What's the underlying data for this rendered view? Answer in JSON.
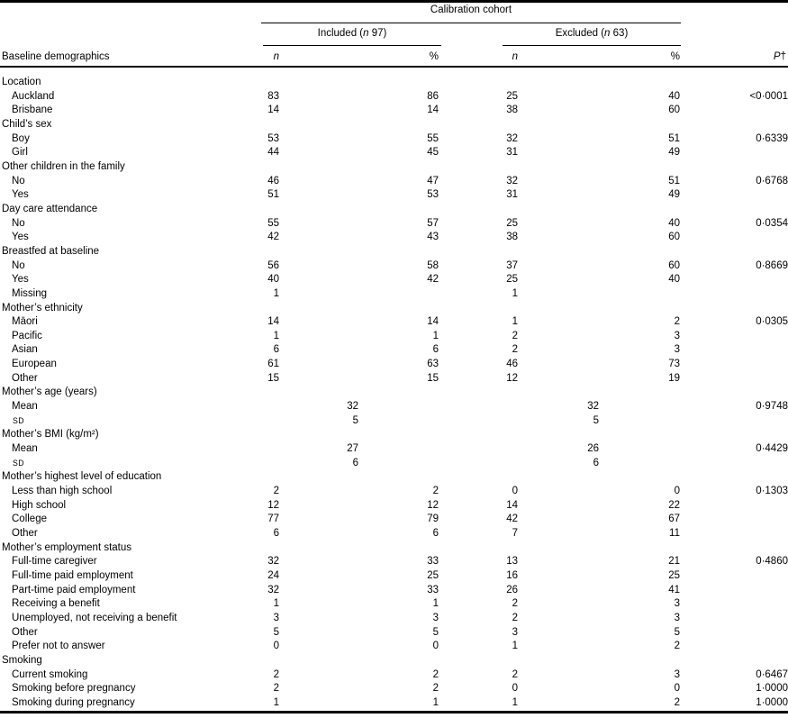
{
  "table": {
    "spanner": "Calibration cohort",
    "included": {
      "prefix": "Included (",
      "n_italic": "n",
      "suffix": " 97)"
    },
    "excluded": {
      "prefix": "Excluded (",
      "n_italic": "n",
      "suffix": " 63)"
    },
    "columns": {
      "label": "Baseline demographics",
      "n_italic": "n",
      "pct": "%",
      "p_italic": "P",
      "p_dagger": "†"
    },
    "rows": [
      {
        "label": "Location",
        "type": "group"
      },
      {
        "label": "Auckland",
        "type": "item",
        "n1": "83",
        "pct1": "86",
        "n2": "25",
        "pct2": "40",
        "p": "<0·0001"
      },
      {
        "label": "Brisbane",
        "type": "item",
        "n1": "14",
        "pct1": "14",
        "n2": "38",
        "pct2": "60"
      },
      {
        "label": "Child’s sex",
        "type": "group"
      },
      {
        "label": "Boy",
        "type": "item",
        "n1": "53",
        "pct1": "55",
        "n2": "32",
        "pct2": "51",
        "p": "0·6339"
      },
      {
        "label": "Girl",
        "type": "item",
        "n1": "44",
        "pct1": "45",
        "n2": "31",
        "pct2": "49"
      },
      {
        "label": "Other children in the family",
        "type": "group"
      },
      {
        "label": "No",
        "type": "item",
        "n1": "46",
        "pct1": "47",
        "n2": "32",
        "pct2": "51",
        "p": "0·6768"
      },
      {
        "label": "Yes",
        "type": "item",
        "n1": "51",
        "pct1": "53",
        "n2": "31",
        "pct2": "49"
      },
      {
        "label": "Day care attendance",
        "type": "group"
      },
      {
        "label": "No",
        "type": "item",
        "n1": "55",
        "pct1": "57",
        "n2": "25",
        "pct2": "40",
        "p": "0·0354"
      },
      {
        "label": "Yes",
        "type": "item",
        "n1": "42",
        "pct1": "43",
        "n2": "38",
        "pct2": "60"
      },
      {
        "label": "Breastfed at baseline",
        "type": "group"
      },
      {
        "label": "No",
        "type": "item",
        "n1": "56",
        "pct1": "58",
        "n2": "37",
        "pct2": "60",
        "p": "0·8669"
      },
      {
        "label": "Yes",
        "type": "item",
        "n1": "40",
        "pct1": "42",
        "n2": "25",
        "pct2": "40"
      },
      {
        "label": "Missing",
        "type": "item",
        "n1": "1",
        "n2": "1"
      },
      {
        "label": "Mother’s ethnicity",
        "type": "group"
      },
      {
        "label": "Māori",
        "type": "item",
        "n1": "14",
        "pct1": "14",
        "n2": "1",
        "pct2": "2",
        "p": "0·0305"
      },
      {
        "label": "Pacific",
        "type": "item",
        "n1": "1",
        "pct1": "1",
        "n2": "2",
        "pct2": "3"
      },
      {
        "label": "Asian",
        "type": "item",
        "n1": "6",
        "pct1": "6",
        "n2": "2",
        "pct2": "3"
      },
      {
        "label": "European",
        "type": "item",
        "n1": "61",
        "pct1": "63",
        "n2": "46",
        "pct2": "73"
      },
      {
        "label": "Other",
        "type": "item",
        "n1": "15",
        "pct1": "15",
        "n2": "12",
        "pct2": "19"
      },
      {
        "label": "Mother’s age (years)",
        "type": "group"
      },
      {
        "label": "Mean",
        "type": "item",
        "m1": "32",
        "m2": "32",
        "p": "0·9748"
      },
      {
        "label": "SD",
        "type": "sd",
        "m1": "5",
        "m2": "5"
      },
      {
        "label": "Mother’s BMI (kg/m²)",
        "type": "group"
      },
      {
        "label": "Mean",
        "type": "item",
        "m1": "27",
        "m2": "26",
        "p": "0·4429"
      },
      {
        "label": "SD",
        "type": "sd",
        "m1": "6",
        "m2": "6"
      },
      {
        "label": "Mother’s highest level of education",
        "type": "group"
      },
      {
        "label": "Less than high school",
        "type": "item",
        "n1": "2",
        "pct1": "2",
        "n2": "0",
        "pct2": "0",
        "p": "0·1303"
      },
      {
        "label": "High school",
        "type": "item",
        "n1": "12",
        "pct1": "12",
        "n2": "14",
        "pct2": "22"
      },
      {
        "label": "College",
        "type": "item",
        "n1": "77",
        "pct1": "79",
        "n2": "42",
        "pct2": "67"
      },
      {
        "label": "Other",
        "type": "item",
        "n1": "6",
        "pct1": "6",
        "n2": "7",
        "pct2": "11"
      },
      {
        "label": "Mother’s employment status",
        "type": "group"
      },
      {
        "label": "Full-time caregiver",
        "type": "item",
        "n1": "32",
        "pct1": "33",
        "n2": "13",
        "pct2": "21",
        "p": "0·4860"
      },
      {
        "label": "Full-time paid employment",
        "type": "item",
        "n1": "24",
        "pct1": "25",
        "n2": "16",
        "pct2": "25"
      },
      {
        "label": "Part-time paid employment",
        "type": "item",
        "n1": "32",
        "pct1": "33",
        "n2": "26",
        "pct2": "41"
      },
      {
        "label": "Receiving a benefit",
        "type": "item",
        "n1": "1",
        "pct1": "1",
        "n2": "2",
        "pct2": "3"
      },
      {
        "label": "Unemployed, not receiving a benefit",
        "type": "item",
        "n1": "3",
        "pct1": "3",
        "n2": "2",
        "pct2": "3"
      },
      {
        "label": "Other",
        "type": "item",
        "n1": "5",
        "pct1": "5",
        "n2": "3",
        "pct2": "5"
      },
      {
        "label": "Prefer not to answer",
        "type": "item",
        "n1": "0",
        "pct1": "0",
        "n2": "1",
        "pct2": "2"
      },
      {
        "label": "Smoking",
        "type": "group"
      },
      {
        "label": "Current smoking",
        "type": "item",
        "n1": "2",
        "pct1": "2",
        "n2": "2",
        "pct2": "3",
        "p": "0·6467"
      },
      {
        "label": "Smoking before pregnancy",
        "type": "item",
        "n1": "2",
        "pct1": "2",
        "n2": "0",
        "pct2": "0",
        "p": "1·0000"
      },
      {
        "label": "Smoking during pregnancy",
        "type": "item",
        "n1": "1",
        "pct1": "1",
        "n2": "1",
        "pct2": "2",
        "p": "1·0000"
      }
    ]
  }
}
